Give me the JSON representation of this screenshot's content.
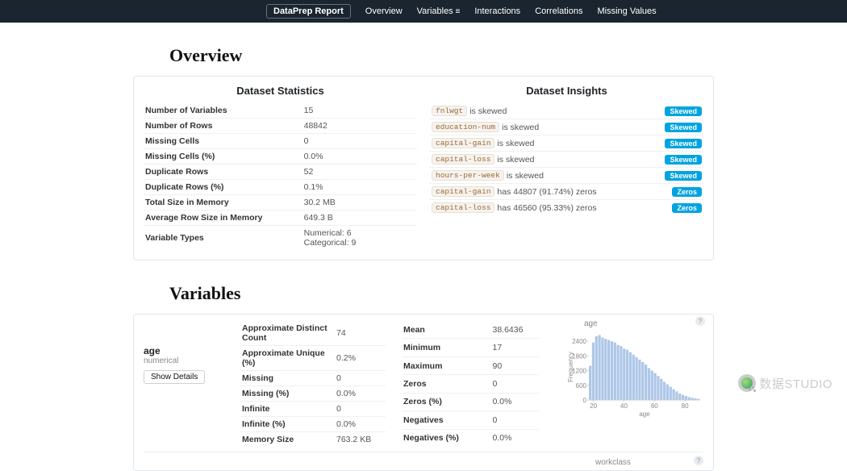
{
  "nav": {
    "brand": "DataPrep Report",
    "items": [
      "Overview",
      "Variables",
      "Interactions",
      "Correlations",
      "Missing Values"
    ]
  },
  "sections": {
    "overview_title": "Overview",
    "variables_title": "Variables"
  },
  "overview": {
    "stats_title": "Dataset Statistics",
    "insights_title": "Dataset Insights",
    "stats": [
      {
        "k": "Number of Variables",
        "v": "15"
      },
      {
        "k": "Number of Rows",
        "v": "48842"
      },
      {
        "k": "Missing Cells",
        "v": "0"
      },
      {
        "k": "Missing Cells (%)",
        "v": "0.0%"
      },
      {
        "k": "Duplicate Rows",
        "v": "52"
      },
      {
        "k": "Duplicate Rows (%)",
        "v": "0.1%"
      },
      {
        "k": "Total Size in Memory",
        "v": "30.2 MB"
      },
      {
        "k": "Average Row Size in Memory",
        "v": "649.3 B"
      },
      {
        "k": "Variable Types",
        "v": "Numerical: 6\nCategorical: 9"
      }
    ],
    "insights": [
      {
        "tag": "fnlwgt",
        "text": "is skewed",
        "badge": "Skewed"
      },
      {
        "tag": "education-num",
        "text": "is skewed",
        "badge": "Skewed"
      },
      {
        "tag": "capital-gain",
        "text": "is skewed",
        "badge": "Skewed"
      },
      {
        "tag": "capital-loss",
        "text": "is skewed",
        "badge": "Skewed"
      },
      {
        "tag": "hours-per-week",
        "text": "is skewed",
        "badge": "Skewed"
      },
      {
        "tag": "capital-gain",
        "text": "has 44807 (91.74%) zeros",
        "badge": "Zeros"
      },
      {
        "tag": "capital-loss",
        "text": "has 46560 (95.33%) zeros",
        "badge": "Zeros"
      }
    ]
  },
  "variable": {
    "name": "age",
    "type": "numerical",
    "show_details": "Show Details",
    "left": [
      {
        "k": "Approximate Distinct Count",
        "v": "74"
      },
      {
        "k": "Approximate Unique (%)",
        "v": "0.2%"
      },
      {
        "k": "Missing",
        "v": "0"
      },
      {
        "k": "Missing (%)",
        "v": "0.0%"
      },
      {
        "k": "Infinite",
        "v": "0"
      },
      {
        "k": "Infinite (%)",
        "v": "0.0%"
      },
      {
        "k": "Memory Size",
        "v": "763.2 KB"
      }
    ],
    "right": [
      {
        "k": "Mean",
        "v": "38.6436"
      },
      {
        "k": "Minimum",
        "v": "17"
      },
      {
        "k": "Maximum",
        "v": "90"
      },
      {
        "k": "Zeros",
        "v": "0"
      },
      {
        "k": "Zeros (%)",
        "v": "0.0%"
      },
      {
        "k": "Negatives",
        "v": "0"
      },
      {
        "k": "Negatives (%)",
        "v": "0.0%"
      }
    ],
    "chart": {
      "type": "histogram",
      "title": "age",
      "xlabel": "age",
      "ylabel": "Frequency",
      "bar_color": "#aec7e8",
      "background_color": "#ffffff",
      "axis_color": "#cccccc",
      "tick_color": "#888888",
      "tick_fontsize": 8,
      "label_fontsize": 8,
      "xlim": [
        17,
        90
      ],
      "ylim": [
        0,
        2700
      ],
      "yticks": [
        0,
        600,
        1200,
        1800,
        2400
      ],
      "xticks": [
        20,
        40,
        60,
        80
      ],
      "values": [
        1400,
        2350,
        2600,
        2650,
        2550,
        2500,
        2450,
        2400,
        2350,
        2250,
        2200,
        2100,
        2050,
        1950,
        1850,
        1750,
        1650,
        1550,
        1450,
        1300,
        1200,
        1100,
        980,
        860,
        740,
        640,
        540,
        440,
        350,
        270,
        210,
        160,
        120,
        90,
        70,
        50
      ]
    },
    "next_var_name": "workclass"
  },
  "watermark": "数据STUDIO"
}
